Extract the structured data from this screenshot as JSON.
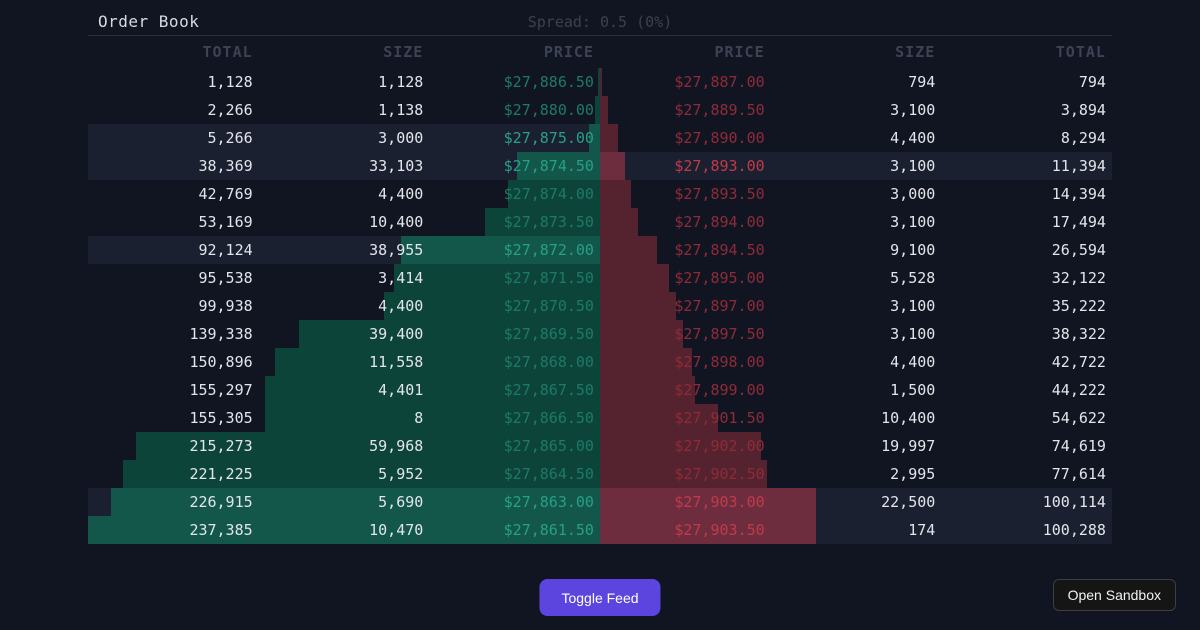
{
  "header": {
    "title": "Order Book",
    "spread": "Spread: 0.5 (0%)"
  },
  "columns": {
    "bid_side": [
      "TOTAL",
      "SIZE",
      "PRICE"
    ],
    "ask_side": [
      "PRICE",
      "SIZE",
      "TOTAL"
    ]
  },
  "bids": [
    {
      "total": "1,128",
      "size": "1,128",
      "price": "$27,886.50",
      "highlight": false
    },
    {
      "total": "2,266",
      "size": "1,138",
      "price": "$27,880.00",
      "highlight": false
    },
    {
      "total": "5,266",
      "size": "3,000",
      "price": "$27,875.00",
      "highlight": true
    },
    {
      "total": "38,369",
      "size": "33,103",
      "price": "$27,874.50",
      "highlight": true
    },
    {
      "total": "42,769",
      "size": "4,400",
      "price": "$27,874.00",
      "highlight": false
    },
    {
      "total": "53,169",
      "size": "10,400",
      "price": "$27,873.50",
      "highlight": false
    },
    {
      "total": "92,124",
      "size": "38,955",
      "price": "$27,872.00",
      "highlight": true
    },
    {
      "total": "95,538",
      "size": "3,414",
      "price": "$27,871.50",
      "highlight": false
    },
    {
      "total": "99,938",
      "size": "4,400",
      "price": "$27,870.50",
      "highlight": false
    },
    {
      "total": "139,338",
      "size": "39,400",
      "price": "$27,869.50",
      "highlight": false
    },
    {
      "total": "150,896",
      "size": "11,558",
      "price": "$27,868.00",
      "highlight": false
    },
    {
      "total": "155,297",
      "size": "4,401",
      "price": "$27,867.50",
      "highlight": false
    },
    {
      "total": "155,305",
      "size": "8",
      "price": "$27,866.50",
      "highlight": false
    },
    {
      "total": "215,273",
      "size": "59,968",
      "price": "$27,865.00",
      "highlight": false
    },
    {
      "total": "221,225",
      "size": "5,952",
      "price": "$27,864.50",
      "highlight": false
    },
    {
      "total": "226,915",
      "size": "5,690",
      "price": "$27,863.00",
      "highlight": true
    },
    {
      "total": "237,385",
      "size": "10,470",
      "price": "$27,861.50",
      "highlight": true
    }
  ],
  "asks": [
    {
      "price": "$27,887.00",
      "size": "794",
      "total": "794",
      "highlight": false
    },
    {
      "price": "$27,889.50",
      "size": "3,100",
      "total": "3,894",
      "highlight": false
    },
    {
      "price": "$27,890.00",
      "size": "4,400",
      "total": "8,294",
      "highlight": false
    },
    {
      "price": "$27,893.00",
      "size": "3,100",
      "total": "11,394",
      "highlight": true
    },
    {
      "price": "$27,893.50",
      "size": "3,000",
      "total": "14,394",
      "highlight": false
    },
    {
      "price": "$27,894.00",
      "size": "3,100",
      "total": "17,494",
      "highlight": false
    },
    {
      "price": "$27,894.50",
      "size": "9,100",
      "total": "26,594",
      "highlight": false
    },
    {
      "price": "$27,895.00",
      "size": "5,528",
      "total": "32,122",
      "highlight": false
    },
    {
      "price": "$27,897.00",
      "size": "3,100",
      "total": "35,222",
      "highlight": false
    },
    {
      "price": "$27,897.50",
      "size": "3,100",
      "total": "38,322",
      "highlight": false
    },
    {
      "price": "$27,898.00",
      "size": "4,400",
      "total": "42,722",
      "highlight": false
    },
    {
      "price": "$27,899.00",
      "size": "1,500",
      "total": "44,222",
      "highlight": false
    },
    {
      "price": "$27,901.50",
      "size": "10,400",
      "total": "54,622",
      "highlight": false
    },
    {
      "price": "$27,902.00",
      "size": "19,997",
      "total": "74,619",
      "highlight": false
    },
    {
      "price": "$27,902.50",
      "size": "2,995",
      "total": "77,614",
      "highlight": false
    },
    {
      "price": "$27,903.00",
      "size": "22,500",
      "total": "100,114",
      "highlight": true
    },
    {
      "price": "$27,903.50",
      "size": "174",
      "total": "100,288",
      "highlight": true
    }
  ],
  "footer": {
    "toggle_feed_label": "Toggle Feed",
    "open_sandbox_label": "Open Sandbox"
  },
  "colors": {
    "background": "#111522",
    "row_highlight": "#1b2030",
    "bid_bar": "#0d443a",
    "bid_bar_highlight": "#12574a",
    "ask_bar": "#55222f",
    "ask_bar_highlight": "#6e2d3e",
    "bid_price_text": "#1c7a68",
    "ask_price_text": "#8f2b38",
    "accent_button": "#5b45de"
  }
}
